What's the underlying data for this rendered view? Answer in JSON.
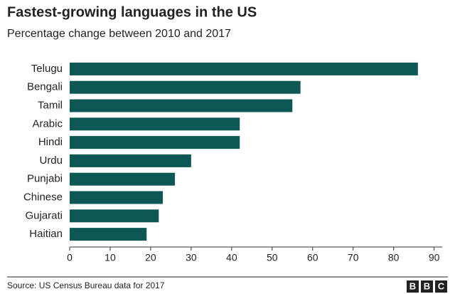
{
  "chart_data": {
    "type": "barh",
    "title": "Fastest-growing languages in the US",
    "subtitle": "Percentage change between 2010 and 2017",
    "categories": [
      "Telugu",
      "Bengali",
      "Tamil",
      "Arabic",
      "Hindi",
      "Urdu",
      "Punjabi",
      "Chinese",
      "Gujarati",
      "Haitian"
    ],
    "values": [
      86,
      57,
      55,
      42,
      42,
      30,
      26,
      23,
      22,
      19
    ],
    "color": "#0d5755",
    "xlim": [
      0,
      92
    ],
    "xticks": [
      0,
      10,
      20,
      30,
      40,
      50,
      60,
      70,
      80,
      90
    ],
    "grid": false,
    "source": "Source: US Census Bureau data for 2017",
    "logo": [
      "B",
      "B",
      "C"
    ]
  }
}
